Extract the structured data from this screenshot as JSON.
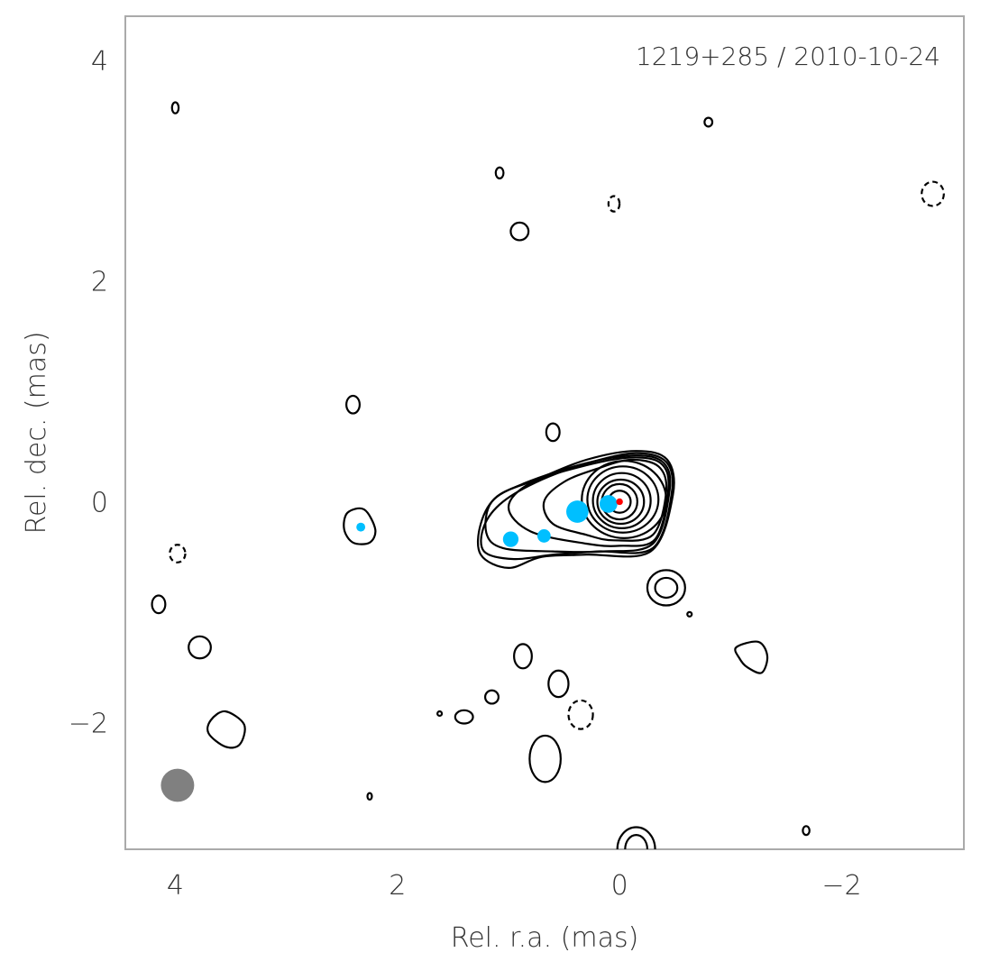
{
  "chart_data": {
    "type": "contour",
    "title": "1219+285 / 2010-10-24",
    "xlabel": "Rel. r.a. (mas)",
    "ylabel": "Rel. dec. (mas)",
    "xlim": [
      4.45,
      -3.1
    ],
    "ylim": [
      -3.15,
      4.4
    ],
    "xticks": [
      4,
      2,
      0,
      -2
    ],
    "yticks": [
      4,
      2,
      0,
      -2
    ],
    "xtick_labels": [
      "4",
      "2",
      "0",
      "−2"
    ],
    "ytick_labels": [
      "4",
      "2",
      "0",
      "−2"
    ],
    "grid": false,
    "colors": {
      "frame": "#aaaaaa",
      "contour": "#000000",
      "component": "#00bfff",
      "core": "#ff0000",
      "beam": "#808080"
    },
    "beam": {
      "x": 3.98,
      "y": -2.57,
      "major": 0.3,
      "minor": 0.3
    },
    "core": {
      "x": 0.0,
      "y": 0.0,
      "size": 0.06
    },
    "components": [
      {
        "x": 0.1,
        "y": -0.02,
        "size": 0.16
      },
      {
        "x": 0.38,
        "y": -0.09,
        "size": 0.2
      },
      {
        "x": 0.68,
        "y": -0.31,
        "size": 0.12
      },
      {
        "x": 0.98,
        "y": -0.34,
        "size": 0.14
      },
      {
        "x": 2.33,
        "y": -0.23,
        "size": 0.08
      }
    ],
    "main_contours": [
      {
        "cx": 0.0,
        "cy": 0.0,
        "rx": 0.1,
        "ry": 0.1
      },
      {
        "cx": 0.0,
        "cy": 0.0,
        "rx": 0.16,
        "ry": 0.16
      },
      {
        "cx": -0.01,
        "cy": 0.0,
        "rx": 0.21,
        "ry": 0.2
      },
      {
        "cx": -0.02,
        "cy": 0.01,
        "rx": 0.26,
        "ry": 0.25
      },
      {
        "cx": -0.03,
        "cy": 0.02,
        "rx": 0.32,
        "ry": 0.3
      },
      {
        "cx": -0.04,
        "cy": 0.02,
        "rx": 0.38,
        "ry": 0.35
      }
    ],
    "jet_contours": [
      [
        [
          -0.42,
          0.1
        ],
        [
          -0.35,
          0.32
        ],
        [
          -0.1,
          0.38
        ],
        [
          0.2,
          0.3
        ],
        [
          0.5,
          0.18
        ],
        [
          0.68,
          0.0
        ],
        [
          0.6,
          -0.2
        ],
        [
          0.3,
          -0.3
        ],
        [
          0.05,
          -0.35
        ],
        [
          -0.3,
          -0.3
        ]
      ],
      [
        [
          -0.44,
          0.12
        ],
        [
          -0.37,
          0.35
        ],
        [
          -0.1,
          0.4
        ],
        [
          0.3,
          0.33
        ],
        [
          0.8,
          0.17
        ],
        [
          1.0,
          -0.05
        ],
        [
          0.8,
          -0.27
        ],
        [
          0.3,
          -0.38
        ],
        [
          0.0,
          -0.4
        ],
        [
          -0.32,
          -0.34
        ]
      ],
      [
        [
          -0.45,
          0.1
        ],
        [
          -0.4,
          0.35
        ],
        [
          -0.15,
          0.42
        ],
        [
          0.3,
          0.35
        ],
        [
          0.85,
          0.17
        ],
        [
          1.15,
          0.0
        ],
        [
          1.2,
          -0.28
        ],
        [
          1.05,
          -0.42
        ],
        [
          0.6,
          -0.45
        ],
        [
          0.15,
          -0.45
        ],
        [
          -0.3,
          -0.38
        ]
      ],
      [
        [
          -0.47,
          0.08
        ],
        [
          -0.42,
          0.36
        ],
        [
          -0.15,
          0.44
        ],
        [
          0.25,
          0.36
        ],
        [
          0.7,
          0.2
        ],
        [
          1.05,
          0.0
        ],
        [
          1.22,
          -0.22
        ],
        [
          1.22,
          -0.45
        ],
        [
          0.95,
          -0.52
        ],
        [
          0.6,
          -0.48
        ],
        [
          0.2,
          -0.45
        ],
        [
          -0.3,
          -0.42
        ]
      ],
      [
        [
          -0.48,
          0.06
        ],
        [
          -0.43,
          0.38
        ],
        [
          -0.15,
          0.46
        ],
        [
          0.3,
          0.38
        ],
        [
          0.75,
          0.2
        ],
        [
          1.1,
          0.05
        ],
        [
          1.25,
          -0.2
        ],
        [
          1.25,
          -0.48
        ],
        [
          1.0,
          -0.6
        ],
        [
          0.7,
          -0.5
        ],
        [
          0.3,
          -0.48
        ],
        [
          -0.28,
          -0.45
        ]
      ]
    ],
    "islands": [
      {
        "cx": 4.0,
        "cy": 3.57,
        "rx": 0.03,
        "ry": 0.05,
        "dashed": false
      },
      {
        "cx": -0.8,
        "cy": 3.44,
        "rx": 0.035,
        "ry": 0.04,
        "dashed": false
      },
      {
        "cx": 1.08,
        "cy": 2.98,
        "rx": 0.035,
        "ry": 0.05,
        "dashed": false
      },
      {
        "cx": 0.05,
        "cy": 2.7,
        "rx": 0.05,
        "ry": 0.07,
        "dashed": true
      },
      {
        "cx": -2.82,
        "cy": 2.79,
        "rx": 0.1,
        "ry": 0.11,
        "dashed": true
      },
      {
        "cx": 0.9,
        "cy": 2.45,
        "rx": 0.08,
        "ry": 0.08,
        "dashed": false
      },
      {
        "cx": 2.4,
        "cy": 0.88,
        "rx": 0.06,
        "ry": 0.08,
        "dashed": false
      },
      {
        "cx": 0.6,
        "cy": 0.63,
        "rx": 0.06,
        "ry": 0.08,
        "dashed": false
      },
      {
        "cx": 3.98,
        "cy": -0.47,
        "rx": 0.07,
        "ry": 0.08,
        "dashed": true
      },
      {
        "cx": 4.15,
        "cy": -0.93,
        "rx": 0.06,
        "ry": 0.08,
        "dashed": false
      },
      {
        "cx": 3.78,
        "cy": -1.32,
        "rx": 0.1,
        "ry": 0.1,
        "dashed": false
      },
      {
        "cx": -0.42,
        "cy": -0.78,
        "rx": 0.17,
        "ry": 0.16,
        "dashed": false
      },
      {
        "cx": -0.42,
        "cy": -0.78,
        "rx": 0.1,
        "ry": 0.09,
        "dashed": false
      },
      {
        "cx": -0.63,
        "cy": -1.02,
        "rx": 0.02,
        "ry": 0.02,
        "dashed": false
      },
      {
        "cx": 0.87,
        "cy": -1.4,
        "rx": 0.08,
        "ry": 0.11,
        "dashed": false
      },
      {
        "cx": 0.55,
        "cy": -1.65,
        "rx": 0.09,
        "ry": 0.12,
        "dashed": false
      },
      {
        "cx": 1.15,
        "cy": -1.77,
        "rx": 0.06,
        "ry": 0.06,
        "dashed": false
      },
      {
        "cx": 0.35,
        "cy": -1.93,
        "rx": 0.11,
        "ry": 0.13,
        "dashed": true
      },
      {
        "cx": 1.4,
        "cy": -1.95,
        "rx": 0.08,
        "ry": 0.06,
        "dashed": false
      },
      {
        "cx": 1.62,
        "cy": -1.92,
        "rx": 0.02,
        "ry": 0.02,
        "dashed": false
      },
      {
        "cx": 0.67,
        "cy": -2.33,
        "rx": 0.14,
        "ry": 0.21,
        "dashed": false
      },
      {
        "cx": 2.25,
        "cy": -2.67,
        "rx": 0.02,
        "ry": 0.03,
        "dashed": false
      },
      {
        "cx": -1.68,
        "cy": -2.98,
        "rx": 0.03,
        "ry": 0.04,
        "dashed": false
      },
      {
        "cx": -0.15,
        "cy": -3.15,
        "rx": 0.17,
        "ry": 0.2,
        "dashed": false
      },
      {
        "cx": -0.15,
        "cy": -3.15,
        "rx": 0.1,
        "ry": 0.13,
        "dashed": false
      }
    ],
    "blobs": [
      {
        "points": [
          [
            3.68,
            -1.98
          ],
          [
            3.55,
            -1.9
          ],
          [
            3.38,
            -2.02
          ],
          [
            3.42,
            -2.2
          ],
          [
            3.55,
            -2.22
          ],
          [
            3.7,
            -2.1
          ]
        ],
        "dashed": false
      },
      {
        "points": [
          [
            2.45,
            -0.1
          ],
          [
            2.3,
            -0.07
          ],
          [
            2.2,
            -0.25
          ],
          [
            2.25,
            -0.37
          ],
          [
            2.4,
            -0.37
          ],
          [
            2.48,
            -0.25
          ]
        ],
        "dashed": false
      },
      {
        "points": [
          [
            -1.05,
            -1.32
          ],
          [
            -1.25,
            -1.27
          ],
          [
            -1.33,
            -1.4
          ],
          [
            -1.28,
            -1.55
          ],
          [
            -1.15,
            -1.5
          ],
          [
            -1.08,
            -1.42
          ]
        ],
        "dashed": false
      }
    ]
  }
}
